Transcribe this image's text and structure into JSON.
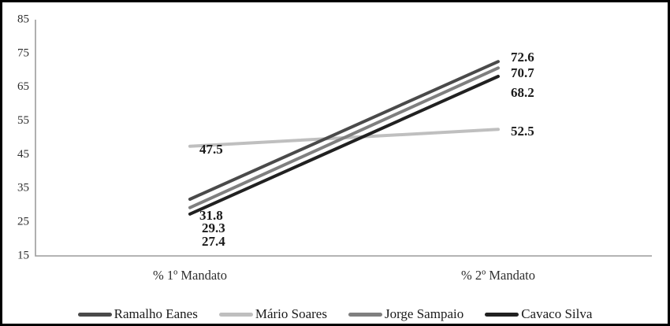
{
  "chart_data": {
    "type": "line",
    "title": "",
    "categories": [
      "% 1º Mandato",
      "% 2º Mandato"
    ],
    "series": [
      {
        "name": "Ramalho Eanes",
        "values": [
          31.8,
          72.6
        ],
        "color": "#4a4a4a"
      },
      {
        "name": "Mário Soares",
        "values": [
          47.5,
          52.5
        ],
        "color": "#bfbfbf"
      },
      {
        "name": "Jorge Sampaio",
        "values": [
          29.3,
          70.7
        ],
        "color": "#7f7f7f"
      },
      {
        "name": "Cavaco Silva",
        "values": [
          27.4,
          68.2
        ],
        "color": "#212121"
      }
    ],
    "ylim": [
      15,
      85
    ],
    "y_ticks": [
      85,
      75,
      65,
      55,
      45,
      35,
      25,
      15
    ],
    "grid": false,
    "data_labels": true,
    "legend_position": "bottom",
    "xlabel": "",
    "ylabel": "",
    "axis_color": "#9c9c9c",
    "tick_label_color": "#2e2e2e",
    "data_label_color": "#1a1a1a"
  }
}
